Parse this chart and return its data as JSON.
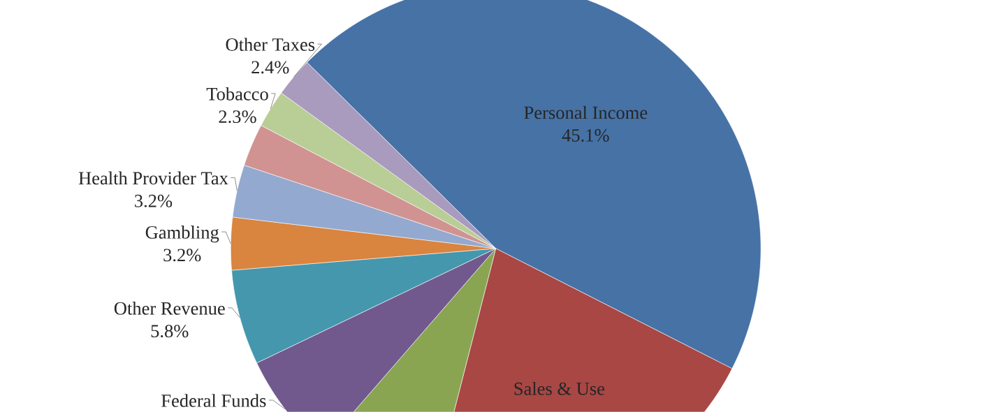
{
  "chart_data": {
    "type": "pie",
    "categories": [
      "Personal Income",
      "Sales & Use",
      null,
      "Federal Funds",
      "Other Revenue",
      "Gambling",
      "Health Provider Tax",
      null,
      "Tobacco",
      "Other Taxes"
    ],
    "values": [
      45.1,
      21.5,
      7.4,
      6.5,
      5.8,
      3.2,
      3.2,
      2.6,
      2.3,
      2.4
    ],
    "value_labels": [
      "45.1%",
      null,
      null,
      null,
      "5.8%",
      "3.2%",
      "3.2%",
      null,
      "2.3%",
      "2.4%"
    ],
    "colors": [
      "#4672a6",
      "#a84744",
      "#8aa552",
      "#71598e",
      "#4597ad",
      "#d9843f",
      "#93a9cf",
      "#d09392",
      "#b9cd96",
      "#a99bbd"
    ]
  }
}
